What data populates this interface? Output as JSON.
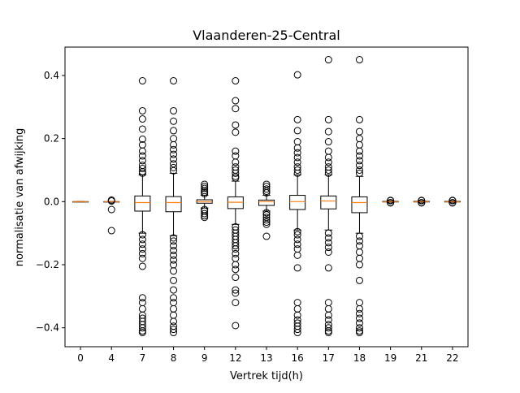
{
  "chart_data": {
    "type": "boxplot",
    "title": "Vlaanderen-25-Central",
    "xlabel": "Vertrek tijd(h)",
    "ylabel": "normalisatie van afwijking",
    "ylim": [
      -0.46,
      0.49
    ],
    "yticks": [
      -0.4,
      -0.2,
      0.0,
      0.2,
      0.4
    ],
    "ytick_labels": [
      "−0.4",
      "−0.2",
      "0.0",
      "0.2",
      "0.4"
    ],
    "categories": [
      "0",
      "4",
      "7",
      "8",
      "9",
      "12",
      "13",
      "16",
      "17",
      "18",
      "19",
      "21",
      "22"
    ],
    "grid": false,
    "box_color": "#000000",
    "median_color": "#ff7f0e",
    "boxes": [
      {
        "q1": 0.0,
        "median": 0.0,
        "q3": 0.0,
        "whisker_low": 0.0,
        "whisker_high": 0.0,
        "outliers": []
      },
      {
        "q1": 0.0,
        "median": 0.0,
        "q3": 0.0,
        "whisker_low": 0.0,
        "whisker_high": 0.0,
        "outliers": [
          0.005,
          0.002,
          -0.025,
          -0.092
        ]
      },
      {
        "q1": -0.03,
        "median": -0.003,
        "q3": 0.018,
        "whisker_low": -0.1,
        "whisker_high": 0.085,
        "outliers": [
          0.383,
          0.288,
          0.262,
          0.23,
          0.198,
          0.18,
          0.16,
          0.145,
          0.13,
          0.115,
          0.105,
          0.095,
          0.09,
          -0.105,
          -0.12,
          -0.135,
          -0.15,
          -0.165,
          -0.18,
          -0.205,
          -0.305,
          -0.32,
          -0.34,
          -0.36,
          -0.37,
          -0.38,
          -0.39,
          -0.4,
          -0.41,
          -0.415
        ]
      },
      {
        "q1": -0.032,
        "median": -0.003,
        "q3": 0.016,
        "whisker_low": -0.108,
        "whisker_high": 0.09,
        "outliers": [
          0.383,
          0.288,
          0.255,
          0.225,
          0.2,
          0.18,
          0.165,
          0.15,
          0.135,
          0.12,
          0.108,
          0.098,
          -0.115,
          -0.125,
          -0.14,
          -0.155,
          -0.17,
          -0.185,
          -0.2,
          -0.22,
          -0.25,
          -0.28,
          -0.305,
          -0.32,
          -0.34,
          -0.36,
          -0.38,
          -0.395,
          -0.405,
          -0.415
        ]
      },
      {
        "q1": -0.005,
        "median": 0.0,
        "q3": 0.006,
        "whisker_low": -0.02,
        "whisker_high": 0.02,
        "outliers": [
          0.055,
          0.048,
          0.042,
          0.035,
          0.03,
          0.025,
          -0.025,
          -0.03,
          -0.038,
          -0.045,
          -0.05
        ]
      },
      {
        "q1": -0.022,
        "median": -0.002,
        "q3": 0.015,
        "whisker_low": -0.072,
        "whisker_high": 0.065,
        "outliers": [
          0.383,
          0.32,
          0.295,
          0.243,
          0.22,
          0.16,
          0.145,
          0.125,
          0.11,
          0.1,
          0.09,
          0.08,
          0.075,
          -0.08,
          -0.09,
          -0.1,
          -0.11,
          -0.12,
          -0.13,
          -0.14,
          -0.15,
          -0.165,
          -0.18,
          -0.2,
          -0.215,
          -0.24,
          -0.28,
          -0.29,
          -0.32,
          -0.393
        ]
      },
      {
        "q1": -0.012,
        "median": 0.0,
        "q3": 0.005,
        "whisker_low": -0.03,
        "whisker_high": 0.02,
        "outliers": [
          0.055,
          0.048,
          0.04,
          0.033,
          0.028,
          -0.035,
          -0.042,
          -0.05,
          -0.058,
          -0.065,
          -0.072,
          -0.11
        ]
      },
      {
        "q1": -0.025,
        "median": 0.0,
        "q3": 0.02,
        "whisker_low": -0.09,
        "whisker_high": 0.085,
        "outliers": [
          0.402,
          0.26,
          0.225,
          0.19,
          0.17,
          0.155,
          0.14,
          0.125,
          0.11,
          0.1,
          0.09,
          -0.095,
          -0.105,
          -0.12,
          -0.135,
          -0.15,
          -0.17,
          -0.21,
          -0.32,
          -0.34,
          -0.36,
          -0.375,
          -0.385,
          -0.395,
          -0.405,
          -0.415
        ]
      },
      {
        "q1": -0.023,
        "median": 0.002,
        "q3": 0.018,
        "whisker_low": -0.09,
        "whisker_high": 0.085,
        "outliers": [
          0.45,
          0.26,
          0.222,
          0.19,
          0.16,
          0.14,
          0.125,
          0.11,
          0.1,
          0.09,
          -0.1,
          -0.115,
          -0.13,
          -0.145,
          -0.16,
          -0.21,
          -0.32,
          -0.34,
          -0.36,
          -0.375,
          -0.39,
          -0.4,
          -0.41,
          -0.415
        ]
      },
      {
        "q1": -0.035,
        "median": -0.003,
        "q3": 0.015,
        "whisker_low": -0.1,
        "whisker_high": 0.08,
        "outliers": [
          0.45,
          0.26,
          0.222,
          0.2,
          0.18,
          0.16,
          0.145,
          0.13,
          0.115,
          0.1,
          0.09,
          -0.11,
          -0.125,
          -0.14,
          -0.16,
          -0.18,
          -0.2,
          -0.25,
          -0.32,
          -0.34,
          -0.355,
          -0.37,
          -0.385,
          -0.4,
          -0.41,
          -0.415
        ]
      },
      {
        "q1": -0.001,
        "median": 0.0,
        "q3": 0.001,
        "whisker_low": -0.002,
        "whisker_high": 0.002,
        "outliers": [
          0.004,
          0.003,
          -0.003,
          -0.004
        ]
      },
      {
        "q1": -0.001,
        "median": 0.0,
        "q3": 0.001,
        "whisker_low": -0.002,
        "whisker_high": 0.002,
        "outliers": [
          0.004,
          0.003,
          -0.003,
          -0.004
        ]
      },
      {
        "q1": -0.001,
        "median": 0.0,
        "q3": 0.001,
        "whisker_low": -0.002,
        "whisker_high": 0.002,
        "outliers": [
          0.004,
          0.003,
          -0.003,
          -0.004
        ]
      }
    ]
  }
}
